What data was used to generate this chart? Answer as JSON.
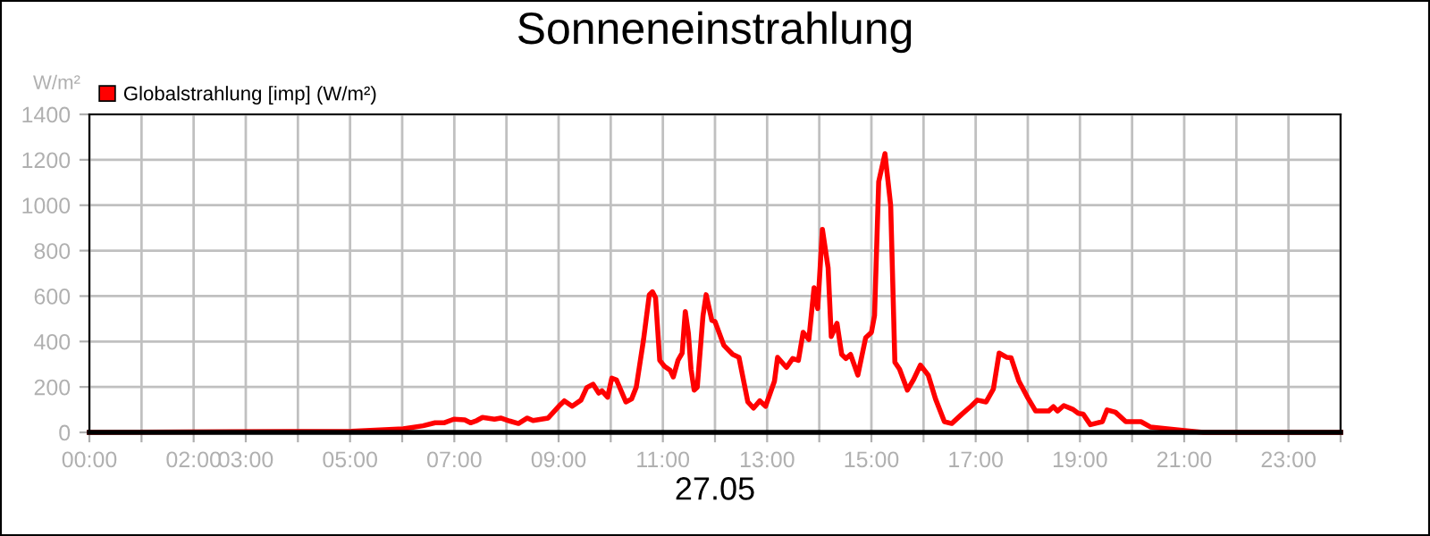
{
  "chart_data": {
    "type": "line",
    "title": "Sonneneinstrahlung",
    "xlabel": "27.05",
    "ylabel": "W/m²",
    "xlim": [
      0,
      24
    ],
    "ylim": [
      0,
      1400
    ],
    "yticks": [
      0,
      200,
      400,
      600,
      800,
      1000,
      1200,
      1400
    ],
    "xticks": [
      {
        "value": 0,
        "label": "00:00"
      },
      {
        "value": 1,
        "label": null
      },
      {
        "value": 2,
        "label": "02:00"
      },
      {
        "value": 3,
        "label": "03:00"
      },
      {
        "value": 4,
        "label": null
      },
      {
        "value": 5,
        "label": "05:00"
      },
      {
        "value": 6,
        "label": null
      },
      {
        "value": 7,
        "label": "07:00"
      },
      {
        "value": 8,
        "label": null
      },
      {
        "value": 9,
        "label": "09:00"
      },
      {
        "value": 10,
        "label": null
      },
      {
        "value": 11,
        "label": "11:00"
      },
      {
        "value": 12,
        "label": null
      },
      {
        "value": 13,
        "label": "13:00"
      },
      {
        "value": 14,
        "label": null
      },
      {
        "value": 15,
        "label": "15:00"
      },
      {
        "value": 16,
        "label": null
      },
      {
        "value": 17,
        "label": "17:00"
      },
      {
        "value": 18,
        "label": null
      },
      {
        "value": 19,
        "label": "19:00"
      },
      {
        "value": 20,
        "label": null
      },
      {
        "value": 21,
        "label": "21:00"
      },
      {
        "value": 22,
        "label": null
      },
      {
        "value": 23,
        "label": "23:00"
      },
      {
        "value": 24,
        "label": null
      }
    ],
    "grid": true,
    "legend": "top left",
    "marker": "none",
    "line_style": "solid",
    "series": [
      {
        "name": "Globalstrahlung [imp] (W/m²)",
        "color": "#ff0000",
        "x": [
          0,
          5.03,
          6.02,
          6.4,
          6.63,
          6.8,
          6.99,
          7.2,
          7.31,
          7.43,
          7.54,
          7.77,
          7.89,
          8.06,
          8.23,
          8.4,
          8.51,
          8.8,
          9.03,
          9.11,
          9.26,
          9.43,
          9.54,
          9.66,
          9.77,
          9.83,
          9.94,
          10.02,
          10.11,
          10.29,
          10.4,
          10.49,
          10.63,
          10.74,
          10.8,
          10.86,
          10.94,
          11.03,
          11.14,
          11.2,
          11.29,
          11.37,
          11.43,
          11.49,
          11.54,
          11.6,
          11.66,
          11.77,
          11.83,
          11.94,
          12.0,
          12.17,
          12.34,
          12.46,
          12.63,
          12.74,
          12.86,
          12.97,
          13.14,
          13.2,
          13.37,
          13.49,
          13.6,
          13.69,
          13.8,
          13.9,
          13.97,
          14.06,
          14.17,
          14.23,
          14.34,
          14.43,
          14.51,
          14.6,
          14.74,
          14.89,
          15.0,
          15.06,
          15.14,
          15.26,
          15.37,
          15.45,
          15.54,
          15.69,
          15.81,
          15.94,
          16.09,
          16.23,
          16.4,
          16.54,
          16.74,
          16.91,
          17.03,
          17.2,
          17.34,
          17.45,
          17.6,
          17.68,
          17.83,
          18.0,
          18.15,
          18.4,
          18.49,
          18.57,
          18.69,
          18.86,
          18.97,
          19.06,
          19.2,
          19.43,
          19.52,
          19.68,
          19.88,
          20.17,
          20.35,
          20.8,
          21.14,
          21.37,
          24
        ],
        "values": [
          0,
          5,
          16,
          29,
          42,
          42,
          58,
          55,
          42,
          52,
          66,
          58,
          63,
          50,
          39,
          63,
          52,
          63,
          121,
          139,
          115,
          142,
          197,
          212,
          173,
          183,
          155,
          239,
          231,
          134,
          147,
          199,
          409,
          606,
          619,
          593,
          317,
          291,
          273,
          244,
          317,
          349,
          532,
          435,
          278,
          186,
          199,
          514,
          606,
          493,
          488,
          383,
          343,
          330,
          134,
          107,
          139,
          115,
          225,
          330,
          286,
          325,
          317,
          440,
          409,
          637,
          545,
          894,
          724,
          422,
          480,
          343,
          325,
          343,
          252,
          417,
          440,
          514,
          1104,
          1227,
          999,
          309,
          278,
          186,
          233,
          296,
          252,
          147,
          47,
          39,
          81,
          115,
          142,
          134,
          191,
          349,
          330,
          328,
          225,
          152,
          94,
          94,
          113,
          94,
          118,
          102,
          84,
          81,
          34,
          47,
          99,
          89,
          47,
          47,
          24,
          13,
          5,
          0,
          0
        ]
      }
    ]
  }
}
